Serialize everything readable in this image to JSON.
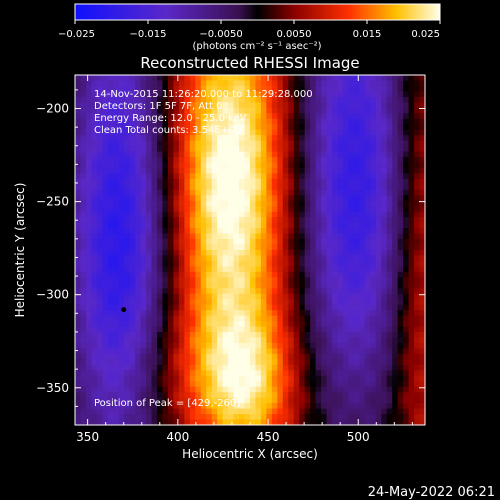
{
  "chart_data": {
    "type": "heatmap",
    "title": "Reconstructed RHESSI Image",
    "xlabel": "Heliocentric X (arcsec)",
    "ylabel": "Heliocentric Y (arcsec)",
    "xlim": [
      343,
      537
    ],
    "ylim": [
      -370,
      -182
    ],
    "x_ticks": [
      350,
      400,
      450,
      500
    ],
    "y_ticks": [
      -200,
      -250,
      -300,
      -350
    ],
    "colorbar": {
      "range": [
        -0.025,
        0.025
      ],
      "ticks": [
        "-0.025",
        "-0.015",
        "-0.0050",
        "0.0050",
        "0.015",
        "0.025"
      ],
      "units_label": "(photons cm⁻² s⁻¹ asec⁻²)"
    },
    "annotations": [
      "14-Nov-2015 11:26:20.000 to 11:29:28.000",
      "Detectors: 1F 5F 7F, Att 0",
      "Energy Range: 12.0 - 25.0 keV",
      "Clean     Total counts: 3.54E+03"
    ],
    "peak_label": "Position of Peak = [429,-260]",
    "peak": [
      429,
      -260
    ],
    "components": [
      {
        "kind": "peak",
        "x": 429,
        "y": -238,
        "sx": 24,
        "sy": 70,
        "amp": 0.026
      },
      {
        "kind": "band",
        "x": 440,
        "y": -350,
        "sx": 20,
        "sy": 30,
        "amp": 0.015
      },
      {
        "kind": "neg",
        "x": 368,
        "y": -275,
        "sx": 20,
        "sy": 95,
        "amp": -0.022
      },
      {
        "kind": "neg",
        "x": 497,
        "y": -240,
        "sx": 22,
        "sy": 85,
        "amp": -0.02
      },
      {
        "kind": "pos",
        "x": 535,
        "y": -290,
        "sx": 12,
        "sy": 110,
        "amp": 0.009
      },
      {
        "kind": "pos",
        "x": 400,
        "y": -345,
        "sx": 30,
        "sy": 30,
        "amp": 0.006
      }
    ]
  },
  "footer_date": "24-May-2022 06:21"
}
